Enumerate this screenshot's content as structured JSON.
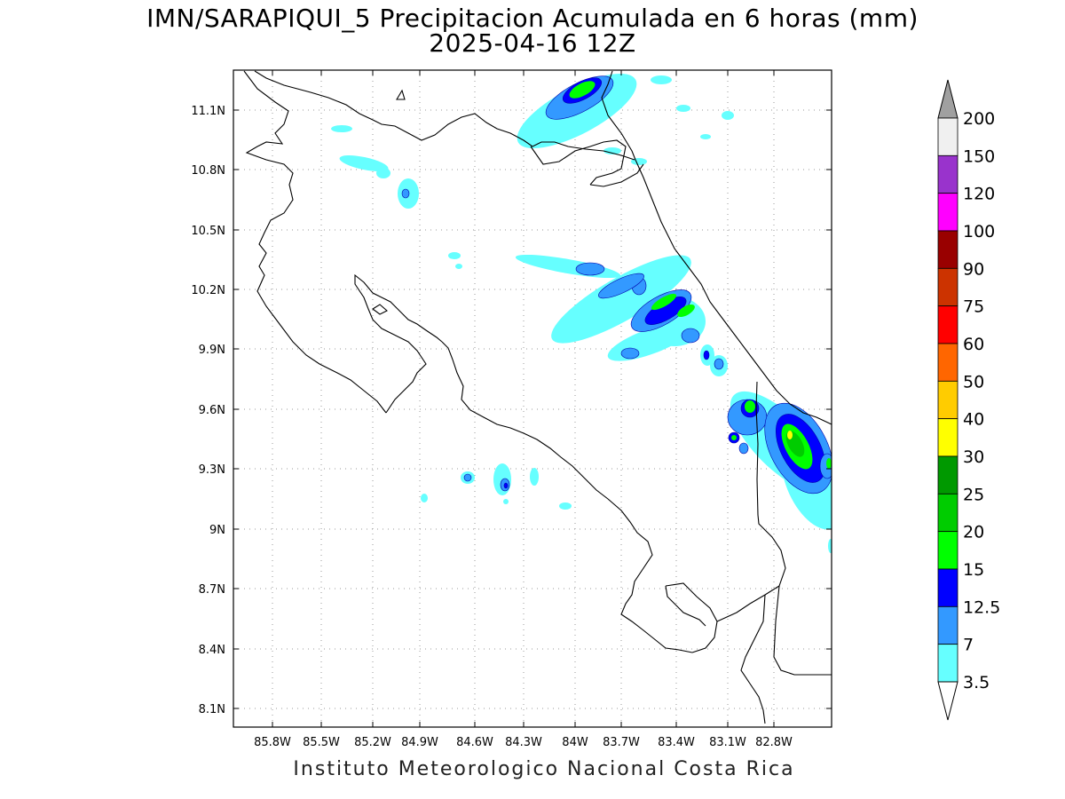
{
  "header": {
    "title": "IMN/SARAPIQUI_5 Precipitacion Acumulada en 6 horas (mm)",
    "date": "2025-04-16 12Z"
  },
  "footer": {
    "credit": "Instituto Meteorologico Nacional Costa Rica"
  },
  "map": {
    "lon_range": [
      -86.0,
      -83.67
    ],
    "lat_range": [
      8.0,
      11.3
    ],
    "x_ticks": [
      "85.8W",
      "85.5W",
      "85.2W",
      "84.9W",
      "84.6W",
      "84.3W",
      "84W",
      "83.7W",
      "83.4W",
      "83.1W",
      "82.8W"
    ],
    "y_ticks": [
      "11.1N",
      "10.8N",
      "10.5N",
      "10.2N",
      "9.9N",
      "9.6N",
      "9.3N",
      "9N",
      "8.7N",
      "8.4N",
      "8.1N"
    ],
    "grid": true
  },
  "colorbar": {
    "levels": [
      "200",
      "150",
      "120",
      "100",
      "90",
      "75",
      "60",
      "50",
      "40",
      "30",
      "25",
      "20",
      "15",
      "12.5",
      "7",
      "3.5"
    ],
    "colors": [
      "#f0f0f0",
      "#9933cc",
      "#ff00ff",
      "#990000",
      "#cc3300",
      "#ff0000",
      "#ff6600",
      "#ffcc00",
      "#ffff00",
      "#009900",
      "#00cc00",
      "#00ff00",
      "#0000ff",
      "#3399ff",
      "#66ffff"
    ],
    "top_triangle_color": "#a0a0a0",
    "bottom_triangle_color": "#ffffff"
  },
  "precip_colors": {
    "c1": "#66ffff",
    "c2": "#3399ff",
    "c3": "#0000ff",
    "c4": "#00ff00",
    "c5": "#00cc00",
    "c6": "#ffff00"
  }
}
